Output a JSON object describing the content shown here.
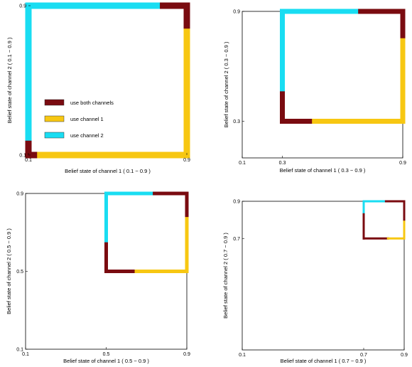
{
  "colors": {
    "both": "#7a0b10",
    "ch1": "#f7c712",
    "ch2": "#19ddf2",
    "frame": "#000000",
    "background": "#ffffff"
  },
  "chart_data": [
    {
      "type": "line",
      "xlabel": "Belief state of channel 1 ( 0.1 − 0.9 )",
      "ylabel": "Belief state of channel 2 ( 0.1 − 0.9 )",
      "xlim": [
        0.1,
        0.9
      ],
      "ylim": [
        0.1,
        0.9
      ],
      "xticks": [
        {
          "v": 0.1,
          "label": "0.1"
        },
        {
          "v": 0.9,
          "label": "0.9"
        }
      ],
      "yticks": [
        {
          "v": 0.1,
          "label": "0.1"
        },
        {
          "v": 0.9,
          "label": "0.9"
        }
      ],
      "grid": false,
      "legend": {
        "placement": "center-left",
        "entries": [
          {
            "key": "both",
            "label": "use both channels"
          },
          {
            "key": "ch1",
            "label": "use channel 1"
          },
          {
            "key": "ch2",
            "label": "use channel 2"
          }
        ]
      },
      "segments": [
        {
          "key": "ch2",
          "x": [
            0.1,
            0.1
          ],
          "y": [
            0.16,
            0.9
          ]
        },
        {
          "key": "both",
          "x": [
            0.1,
            0.1
          ],
          "y": [
            0.1,
            0.16
          ]
        },
        {
          "key": "ch2",
          "x": [
            0.1,
            0.78
          ],
          "y": [
            0.9,
            0.9
          ]
        },
        {
          "key": "both",
          "x": [
            0.78,
            0.9
          ],
          "y": [
            0.9,
            0.9
          ]
        },
        {
          "key": "both",
          "x": [
            0.9,
            0.9
          ],
          "y": [
            0.76,
            0.9
          ]
        },
        {
          "key": "ch1",
          "x": [
            0.9,
            0.9
          ],
          "y": [
            0.1,
            0.76
          ]
        },
        {
          "key": "both",
          "x": [
            0.1,
            0.16
          ],
          "y": [
            0.1,
            0.1
          ]
        },
        {
          "key": "ch1",
          "x": [
            0.16,
            0.9
          ],
          "y": [
            0.1,
            0.1
          ]
        }
      ]
    },
    {
      "type": "line",
      "xlabel": "Belief state of channel 1 ( 0.3 − 0.9 )",
      "ylabel": "Belief state of channel 2 ( 0.3 − 0.9 )",
      "xlim": [
        0.1,
        0.9
      ],
      "ylim": [
        0.1,
        0.9
      ],
      "xticks": [
        {
          "v": 0.1,
          "label": "0.1"
        },
        {
          "v": 0.3,
          "label": "0.3"
        },
        {
          "v": 0.9,
          "label": "0.9"
        }
      ],
      "yticks": [
        {
          "v": 0.3,
          "label": "0.3"
        },
        {
          "v": 0.9,
          "label": "0.9"
        }
      ],
      "grid": false,
      "segments": [
        {
          "key": "ch2",
          "x": [
            0.3,
            0.3
          ],
          "y": [
            0.45,
            0.9
          ]
        },
        {
          "key": "both",
          "x": [
            0.3,
            0.3
          ],
          "y": [
            0.3,
            0.45
          ]
        },
        {
          "key": "ch2",
          "x": [
            0.3,
            0.69
          ],
          "y": [
            0.9,
            0.9
          ]
        },
        {
          "key": "both",
          "x": [
            0.69,
            0.9
          ],
          "y": [
            0.9,
            0.9
          ]
        },
        {
          "key": "both",
          "x": [
            0.9,
            0.9
          ],
          "y": [
            0.74,
            0.9
          ]
        },
        {
          "key": "ch1",
          "x": [
            0.9,
            0.9
          ],
          "y": [
            0.3,
            0.74
          ]
        },
        {
          "key": "both",
          "x": [
            0.3,
            0.46
          ],
          "y": [
            0.3,
            0.3
          ]
        },
        {
          "key": "ch1",
          "x": [
            0.46,
            0.9
          ],
          "y": [
            0.3,
            0.3
          ]
        }
      ]
    },
    {
      "type": "line",
      "xlabel": "Belief state of channel 1 ( 0.5 − 0.9 )",
      "ylabel": "Belief state of channel 2 ( 0.5 − 0.9 )",
      "xlim": [
        0.1,
        0.9
      ],
      "ylim": [
        0.1,
        0.9
      ],
      "xticks": [
        {
          "v": 0.1,
          "label": "0.1"
        },
        {
          "v": 0.5,
          "label": "0.5"
        },
        {
          "v": 0.9,
          "label": "0.9"
        }
      ],
      "yticks": [
        {
          "v": 0.1,
          "label": "0.1"
        },
        {
          "v": 0.5,
          "label": "0.5"
        },
        {
          "v": 0.9,
          "label": "0.9"
        }
      ],
      "grid": false,
      "segments": [
        {
          "key": "ch2",
          "x": [
            0.5,
            0.5
          ],
          "y": [
            0.64,
            0.9
          ]
        },
        {
          "key": "both",
          "x": [
            0.5,
            0.5
          ],
          "y": [
            0.5,
            0.64
          ]
        },
        {
          "key": "ch2",
          "x": [
            0.5,
            0.74
          ],
          "y": [
            0.9,
            0.9
          ]
        },
        {
          "key": "both",
          "x": [
            0.74,
            0.9
          ],
          "y": [
            0.9,
            0.9
          ]
        },
        {
          "key": "both",
          "x": [
            0.9,
            0.9
          ],
          "y": [
            0.77,
            0.9
          ]
        },
        {
          "key": "ch1",
          "x": [
            0.9,
            0.9
          ],
          "y": [
            0.5,
            0.77
          ]
        },
        {
          "key": "both",
          "x": [
            0.5,
            0.65
          ],
          "y": [
            0.5,
            0.5
          ]
        },
        {
          "key": "ch1",
          "x": [
            0.65,
            0.9
          ],
          "y": [
            0.5,
            0.5
          ]
        }
      ]
    },
    {
      "type": "line",
      "xlabel": "Belief state of channel 1 ( 0.7 − 0.9 )",
      "ylabel": "Belief state of channel 2 ( 0.7 − 0.9 )",
      "xlim": [
        0.1,
        0.9
      ],
      "ylim": [
        0.1,
        0.9
      ],
      "xticks": [
        {
          "v": 0.1,
          "label": "0.1"
        },
        {
          "v": 0.7,
          "label": "0.7"
        },
        {
          "v": 0.9,
          "label": "0.9"
        }
      ],
      "yticks": [
        {
          "v": 0.7,
          "label": "0.7"
        },
        {
          "v": 0.9,
          "label": "0.9"
        }
      ],
      "grid": false,
      "segments": [
        {
          "key": "ch2",
          "x": [
            0.7,
            0.7
          ],
          "y": [
            0.83,
            0.9
          ]
        },
        {
          "key": "both",
          "x": [
            0.7,
            0.7
          ],
          "y": [
            0.7,
            0.83
          ]
        },
        {
          "key": "ch2",
          "x": [
            0.7,
            0.81
          ],
          "y": [
            0.9,
            0.9
          ]
        },
        {
          "key": "both",
          "x": [
            0.81,
            0.9
          ],
          "y": [
            0.9,
            0.9
          ]
        },
        {
          "key": "both",
          "x": [
            0.9,
            0.9
          ],
          "y": [
            0.79,
            0.9
          ]
        },
        {
          "key": "ch1",
          "x": [
            0.9,
            0.9
          ],
          "y": [
            0.7,
            0.79
          ]
        },
        {
          "key": "both",
          "x": [
            0.7,
            0.82
          ],
          "y": [
            0.7,
            0.7
          ]
        },
        {
          "key": "ch1",
          "x": [
            0.82,
            0.9
          ],
          "y": [
            0.7,
            0.7
          ]
        }
      ]
    }
  ]
}
